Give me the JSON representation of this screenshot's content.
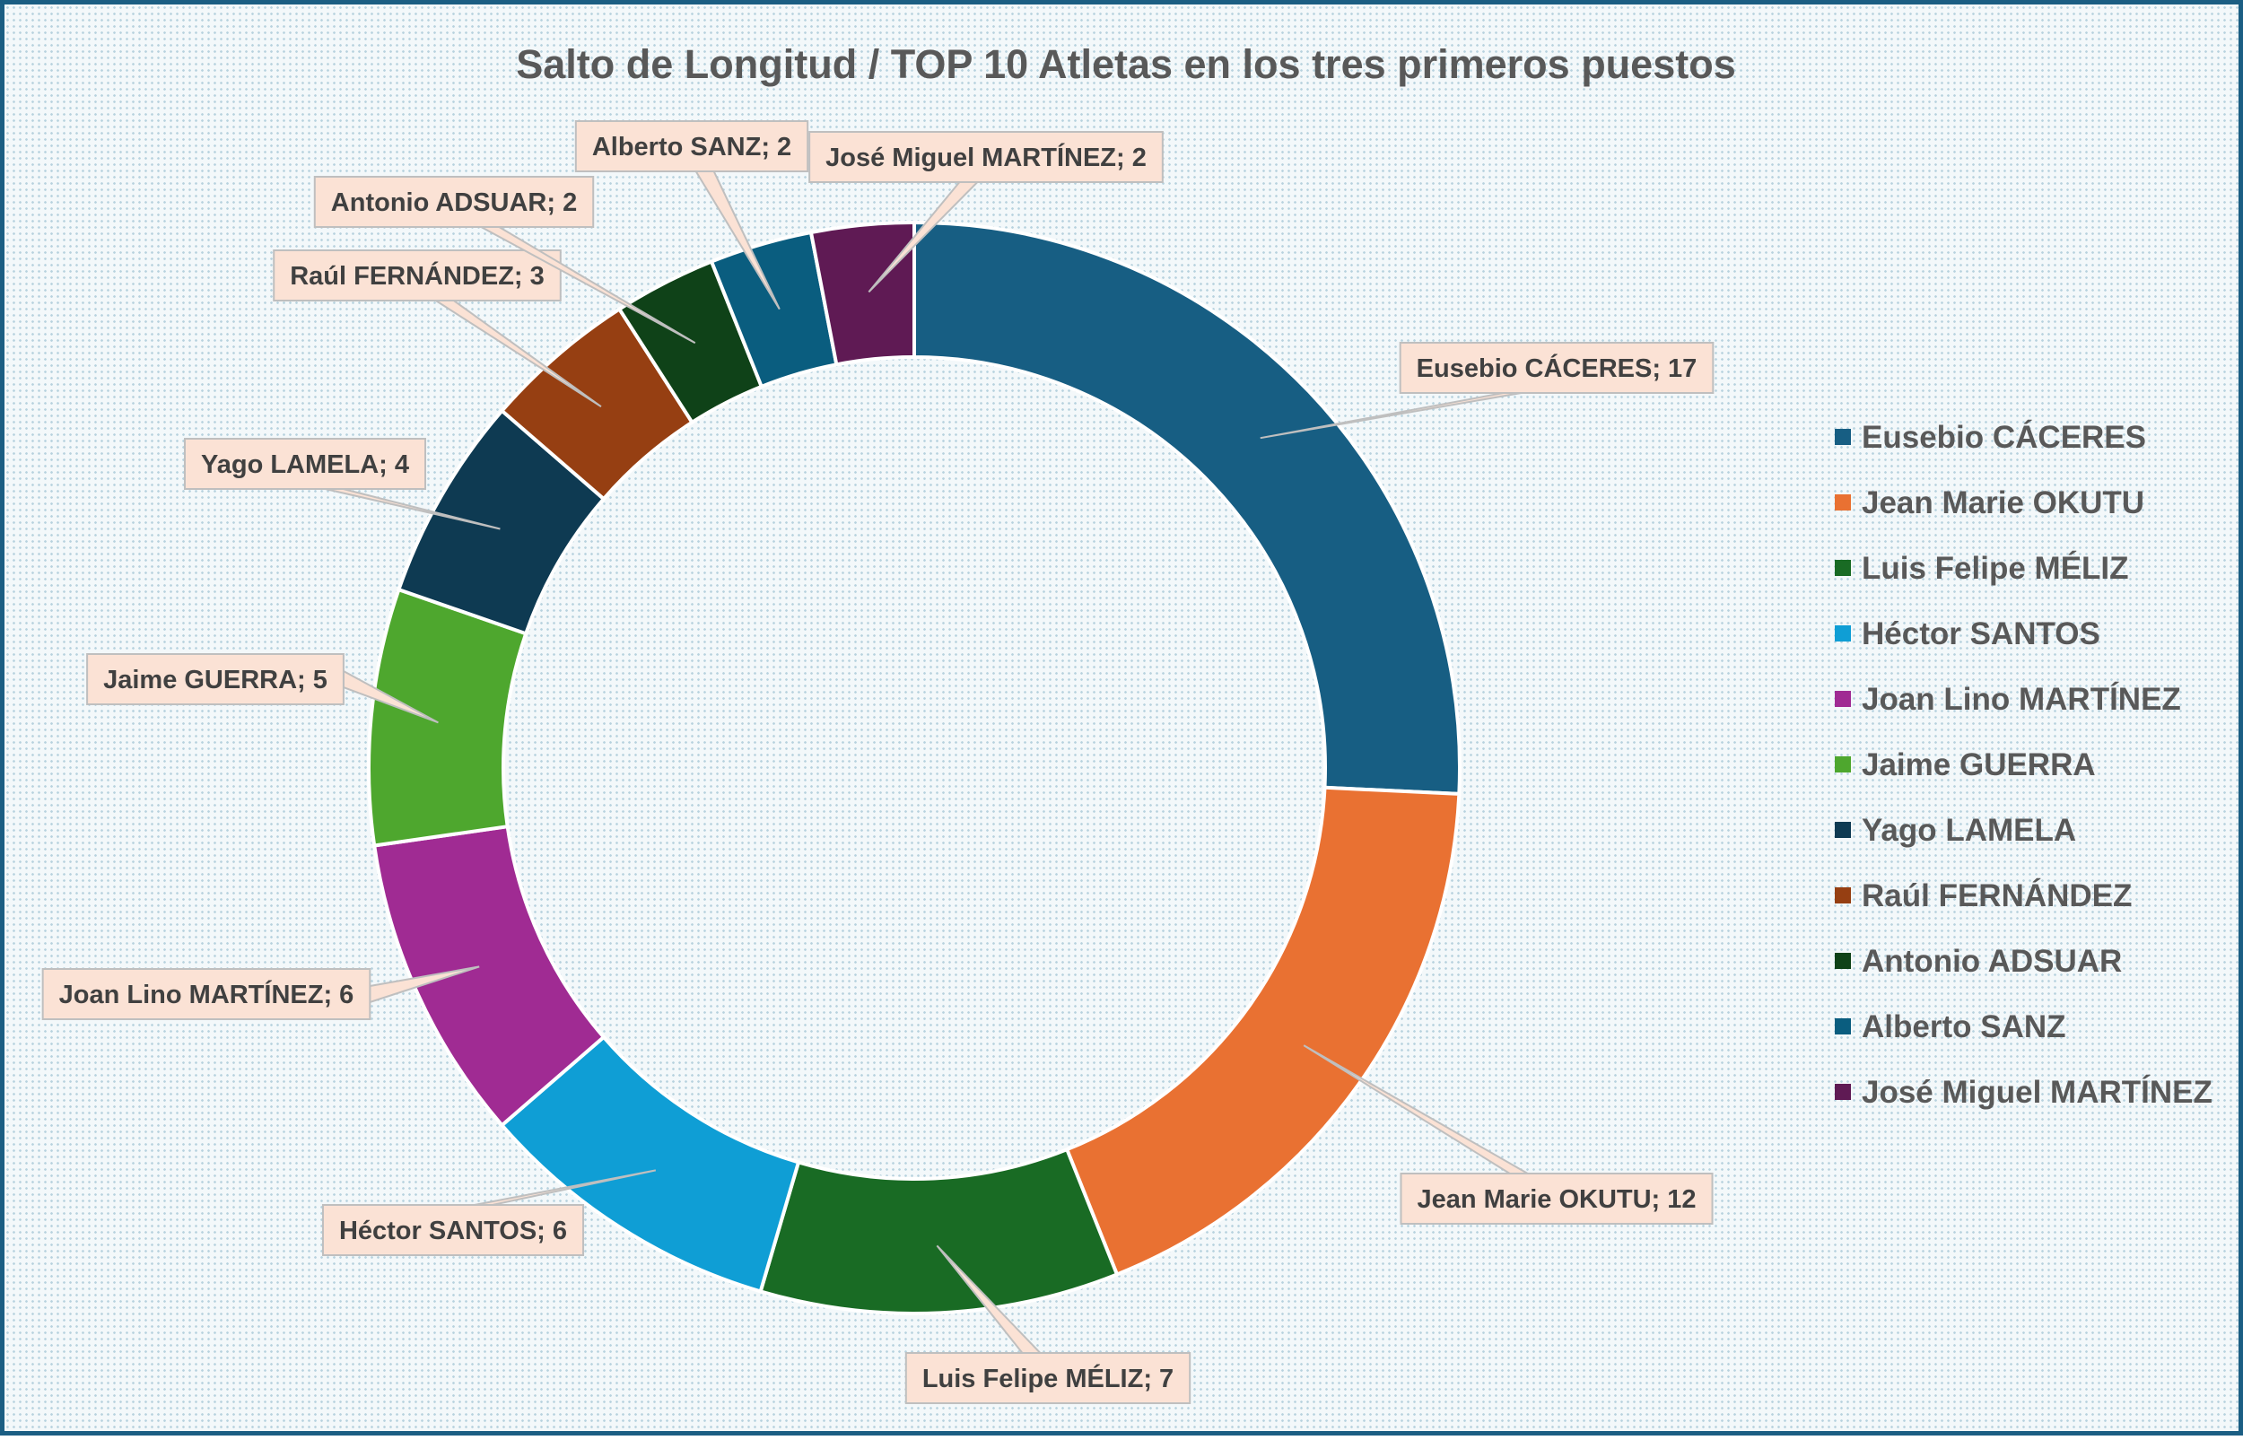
{
  "chart_data": {
    "type": "pie",
    "variant": "doughnut",
    "title": "Salto de Longitud / TOP 10 Atletas en los tres primeros puestos",
    "categories": [
      "Eusebio CÁCERES",
      "Jean Marie OKUTU",
      "Luis Felipe MÉLIZ",
      "Héctor SANTOS",
      "Joan Lino MARTÍNEZ",
      "Jaime GUERRA",
      "Yago LAMELA",
      "Raúl FERNÁNDEZ",
      "Antonio ADSUAR",
      "Alberto SANZ",
      "José Miguel MARTÍNEZ"
    ],
    "values": [
      17,
      12,
      7,
      6,
      6,
      5,
      4,
      3,
      2,
      2,
      2
    ],
    "colors": [
      "#175e83",
      "#e97132",
      "#196b24",
      "#0f9ed5",
      "#a02b93",
      "#4ea72e",
      "#0e3a52",
      "#963f12",
      "#0f4218",
      "#0a5d7f",
      "#5f1a54"
    ],
    "data_labels": [
      "Eusebio CÁCERES; 17",
      "Jean Marie OKUTU; 12",
      "Luis Felipe MÉLIZ; 7",
      "Héctor SANTOS; 6",
      "Joan Lino MARTÍNEZ; 6",
      "Jaime GUERRA; 5",
      "Yago LAMELA; 4",
      "Raúl FERNÁNDEZ; 3",
      "Antonio ADSUAR; 2",
      "Alberto SANZ; 2",
      "José Miguel MARTÍNEZ; 2"
    ],
    "legend": "right",
    "label_fill": "#fbe2d5"
  }
}
